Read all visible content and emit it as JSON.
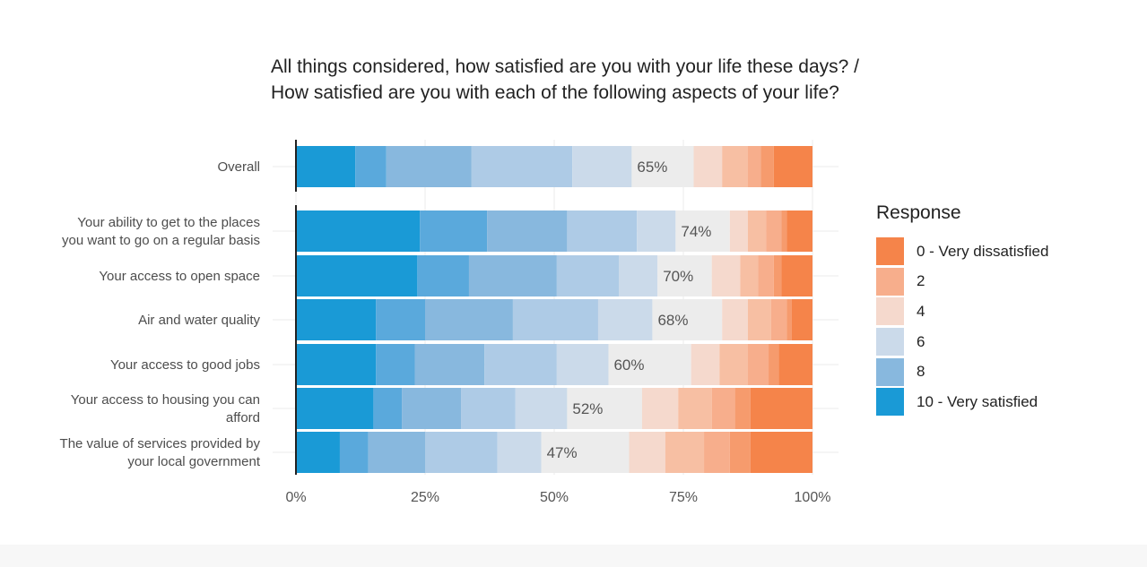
{
  "title": {
    "line1": "All things considered, how satisfied are you with your life these days? /",
    "line2": "How satisfied are you with each of the following aspects of your life?"
  },
  "legend": {
    "title": "Response",
    "items": [
      {
        "label": "0 - Very dissatisfied",
        "color": "#f5844a"
      },
      {
        "label": "2",
        "color": "#f7ae8c"
      },
      {
        "label": "4",
        "color": "#f5d9cd"
      },
      {
        "label": "6",
        "color": "#cbdaea"
      },
      {
        "label": "8",
        "color": "#88b8de"
      },
      {
        "label": "10 - Very satisfied",
        "color": "#1a9ad6"
      }
    ]
  },
  "chart_data": {
    "type": "bar",
    "orientation": "horizontal-stacked-100",
    "title": "All things considered, how satisfied are you with your life these days? / How satisfied are you with each of the following aspects of your life?",
    "xlabel": "",
    "ylabel": "",
    "xlim": [
      0,
      100
    ],
    "x_ticks": [
      "0%",
      "25%",
      "50%",
      "75%",
      "100%"
    ],
    "segment_order": [
      "10",
      "9",
      "8",
      "7",
      "6",
      "5",
      "4",
      "3",
      "2",
      "1",
      "0"
    ],
    "segment_colors": [
      "#1a9ad6",
      "#5aa9dc",
      "#88b8de",
      "#aecbe6",
      "#cbdaea",
      "#ececec",
      "#f5d9cd",
      "#f7bfa3",
      "#f7ae8c",
      "#f69b6d",
      "#f5844a"
    ],
    "categories": [
      {
        "label": "Overall",
        "label_lines": [
          "Overall"
        ],
        "values": [
          11.5,
          6.0,
          16.5,
          19.5,
          11.5,
          12.0,
          5.5,
          5.0,
          2.5,
          2.5,
          7.5
        ],
        "annotation": "65%"
      },
      {
        "label": "Your ability to get to the places you want to go on a regular basis",
        "label_lines": [
          "Your ability to get to the places",
          "you want to go on a regular basis"
        ],
        "values": [
          24.0,
          13.0,
          15.5,
          13.5,
          7.5,
          10.5,
          3.5,
          3.5,
          3.0,
          1.0,
          5.0
        ],
        "annotation": "74%"
      },
      {
        "label": "Your access to open space",
        "label_lines": [
          "Your access to open space"
        ],
        "values": [
          23.5,
          10.0,
          17.0,
          12.0,
          7.5,
          10.5,
          5.5,
          3.5,
          3.0,
          1.5,
          6.0
        ],
        "annotation": "70%"
      },
      {
        "label": "Air and water quality",
        "label_lines": [
          "Air and water quality"
        ],
        "values": [
          15.5,
          9.5,
          17.0,
          16.5,
          10.5,
          13.5,
          5.0,
          4.5,
          3.0,
          1.0,
          4.0
        ],
        "annotation": "68%"
      },
      {
        "label": "Your access to good jobs",
        "label_lines": [
          "Your access to good jobs"
        ],
        "values": [
          15.5,
          7.5,
          13.5,
          14.0,
          10.0,
          16.0,
          5.5,
          5.5,
          4.0,
          2.0,
          6.5
        ],
        "annotation": "60%"
      },
      {
        "label": "Your access to housing you can afford",
        "label_lines": [
          "Your access to housing you can",
          "afford"
        ],
        "values": [
          15.0,
          5.5,
          11.5,
          10.5,
          10.0,
          14.5,
          7.0,
          6.5,
          4.5,
          3.0,
          12.0
        ],
        "annotation": "52%"
      },
      {
        "label": "The value of services provided by your local government",
        "label_lines": [
          "The value of services provided by",
          "your local government"
        ],
        "values": [
          8.5,
          5.5,
          11.0,
          14.0,
          8.5,
          17.0,
          7.0,
          7.5,
          5.0,
          4.0,
          12.0
        ],
        "annotation": "47%"
      }
    ],
    "legend_position": "right"
  }
}
